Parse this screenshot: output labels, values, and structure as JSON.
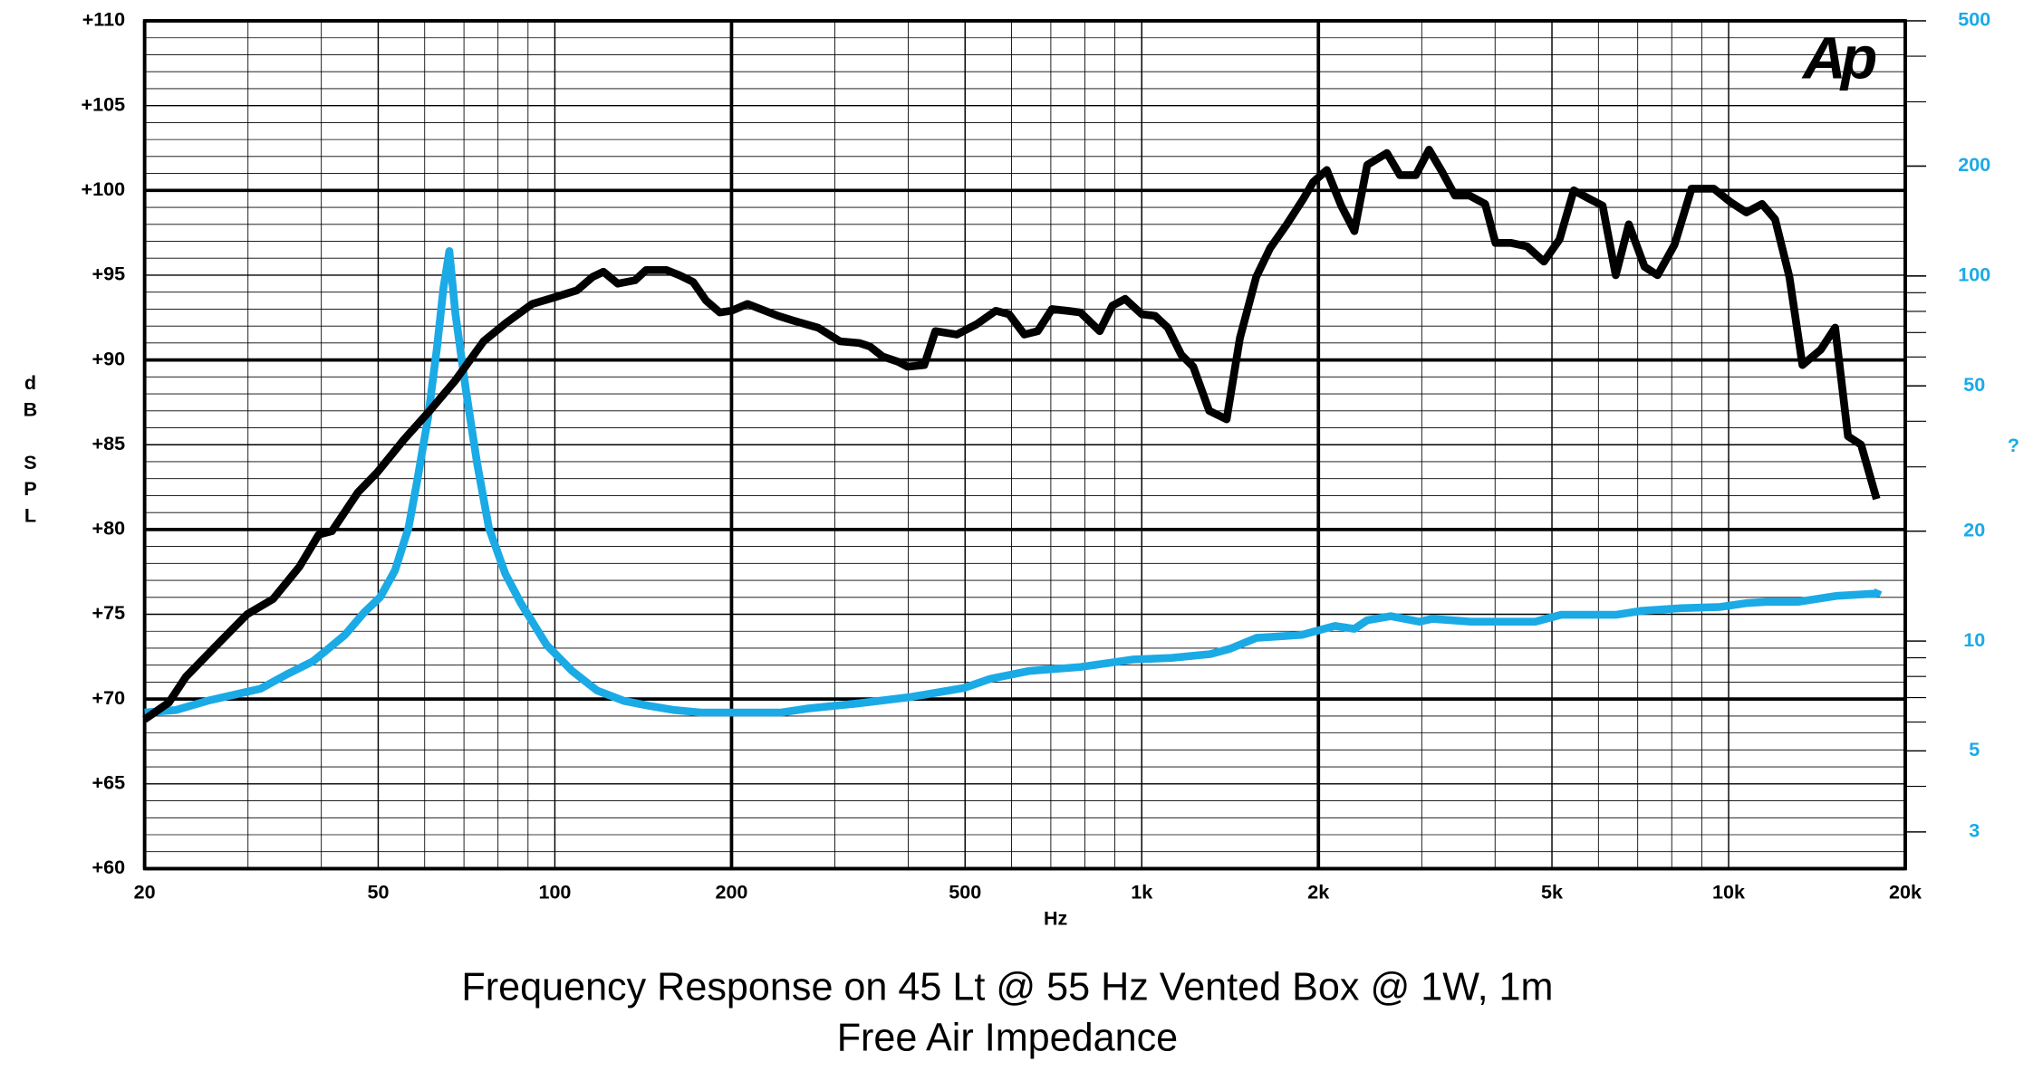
{
  "chart_data": {
    "type": "line",
    "title": "Frequency Response on 45 Lt @ 55 Hz Vented Box @ 1W, 1m",
    "subtitle": "Free Air Impedance",
    "x_label": "Hz",
    "y_label": "dB SPL",
    "y2_label": "?",
    "logo": "Ap",
    "xscale": "log",
    "y2scale": "log",
    "grid": true,
    "xlim": [
      20,
      20000
    ],
    "xticks": [
      20,
      50,
      100,
      200,
      500,
      {
        "value": 1000,
        "label": "1k"
      },
      {
        "value": 2000,
        "label": "2k"
      },
      {
        "value": 5000,
        "label": "5k"
      },
      {
        "value": 10000,
        "label": "10k"
      },
      {
        "value": 20000,
        "label": "20k"
      }
    ],
    "ylim": [
      60,
      110
    ],
    "yticks": [
      {
        "value": 60,
        "label": "+60"
      },
      {
        "value": 65,
        "label": "+65"
      },
      {
        "value": 70,
        "label": "+70"
      },
      {
        "value": 75,
        "label": "+75"
      },
      {
        "value": 80,
        "label": "+80"
      },
      {
        "value": 85,
        "label": "+85"
      },
      {
        "value": 90,
        "label": "+90"
      },
      {
        "value": 95,
        "label": "+95"
      },
      {
        "value": 100,
        "label": "+100"
      },
      {
        "value": 105,
        "label": "+105"
      },
      {
        "value": 110,
        "label": "+110"
      }
    ],
    "y2lim": [
      2.38,
      500
    ],
    "y2ticks": [
      3,
      5,
      10,
      20,
      50,
      100,
      200,
      500
    ],
    "series": [
      {
        "color": "#000000",
        "x": [
          20,
          22,
          23.5,
          26.4,
          29.9,
          33.1,
          36.7,
          39.6,
          41.7,
          46.2,
          49.9,
          55.3,
          61.2,
          67.7,
          75.6,
          82.7,
          91.5,
          100,
          109,
          116,
          121,
          128,
          137,
          143,
          155,
          163,
          172,
          181,
          191,
          200,
          213,
          240,
          256,
          281,
          306,
          330,
          344,
          362,
          384,
          399,
          426,
          445,
          484,
          523,
          564,
          594,
          631,
          665,
          703,
          747,
          786,
          848,
          891,
          937,
          1000,
          1054,
          1108,
          1168,
          1224,
          1303,
          1395,
          1470,
          1567,
          1655,
          1767,
          1885,
          1960,
          2067,
          2187,
          2303,
          2422,
          2617,
          2754,
          2931,
          3087,
          3249,
          3418,
          3616,
          3847,
          4007,
          4261,
          4533,
          4844,
          5150,
          5447,
          5793,
          6099,
          6422,
          6760,
          7190,
          7569,
          8088,
          8645,
          9436,
          10082,
          10721,
          11402,
          11999,
          12693,
          13360,
          14350,
          15188,
          15974,
          16815,
          17870
        ],
        "values": [
          68.8,
          69.8,
          71.3,
          73.1,
          75.0,
          75.9,
          77.8,
          79.7,
          79.9,
          82.2,
          83.4,
          85.3,
          87.0,
          88.8,
          91.1,
          92.2,
          93.3,
          93.7,
          94.1,
          94.9,
          95.2,
          94.5,
          94.7,
          95.3,
          95.3,
          95.0,
          94.6,
          93.5,
          92.8,
          92.9,
          93.3,
          92.6,
          92.3,
          91.9,
          91.1,
          91.0,
          90.8,
          90.2,
          89.9,
          89.6,
          89.7,
          91.7,
          91.5,
          92.1,
          92.9,
          92.7,
          91.5,
          91.7,
          93.0,
          92.9,
          92.8,
          91.7,
          93.2,
          93.6,
          92.7,
          92.6,
          91.9,
          90.3,
          89.6,
          87.0,
          86.5,
          91.3,
          94.9,
          96.6,
          98.0,
          99.5,
          100.5,
          101.2,
          99.1,
          97.6,
          101.5,
          102.2,
          100.9,
          100.9,
          102.4,
          101.1,
          99.7,
          99.7,
          99.2,
          96.9,
          96.9,
          96.7,
          95.8,
          97.1,
          100.0,
          99.5,
          99.1,
          95.0,
          98.0,
          95.5,
          95.0,
          96.8,
          100.1,
          100.1,
          99.3,
          98.7,
          99.2,
          98.3,
          94.9,
          89.7,
          90.6,
          91.9,
          85.5,
          85.0,
          81.8
        ]
      },
      {
        "color": "#1aaae6",
        "axis": "y2",
        "x": [
          20,
          22.6,
          25.6,
          29.2,
          31.5,
          34.9,
          38.7,
          40.7,
          43.9,
          47.3,
          50.4,
          53.4,
          56.3,
          58.2,
          60.8,
          63.0,
          64.6,
          66.1,
          67.7,
          70.6,
          73.7,
          77.2,
          82.3,
          87.5,
          96.8,
          107,
          118,
          131,
          145,
          160,
          177,
          243,
          269,
          329,
          405,
          498,
          552,
          643,
          786,
          966,
          1124,
          1309,
          1413,
          1568,
          1876,
          2134,
          2303,
          2422,
          2657,
          2971,
          3125,
          3637,
          4684,
          5183,
          6422,
          7115,
          8295,
          9674,
          10721,
          11600,
          13100,
          15300,
          17900,
          18000
        ],
        "values": [
          6.37,
          6.47,
          6.86,
          7.2,
          7.4,
          8.1,
          8.8,
          9.4,
          10.4,
          11.97,
          13.2,
          15.6,
          20.4,
          27.2,
          40.9,
          64.1,
          92.9,
          117,
          78.7,
          48.2,
          30.7,
          20.4,
          15.3,
          12.7,
          9.76,
          8.28,
          7.32,
          6.86,
          6.64,
          6.47,
          6.37,
          6.37,
          6.53,
          6.75,
          7.03,
          7.44,
          7.88,
          8.28,
          8.49,
          8.9,
          8.99,
          9.21,
          9.52,
          10.2,
          10.4,
          11.0,
          10.8,
          11.4,
          11.7,
          11.3,
          11.5,
          11.3,
          11.3,
          11.8,
          11.8,
          12.1,
          12.3,
          12.4,
          12.7,
          12.8,
          12.8,
          13.3,
          13.5,
          13.8
        ]
      }
    ]
  }
}
